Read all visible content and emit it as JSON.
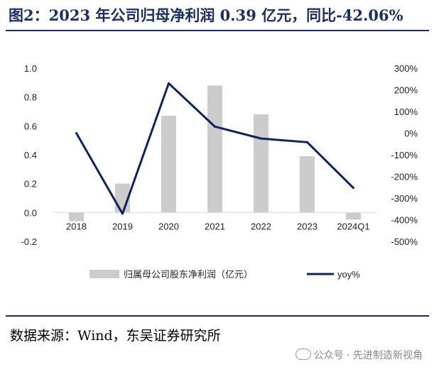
{
  "header": {
    "title": "图2：2023 年公司归母净利润 0.39 亿元，同比-42.06%"
  },
  "footer": {
    "source": "数据来源：Wind，东吴证券研究所",
    "watermark": "公众号 · 先进制造新视角"
  },
  "chart_data": {
    "type": "bar",
    "categories": [
      "2018",
      "2019",
      "2020",
      "2021",
      "2022",
      "2023",
      "2024Q1"
    ],
    "series": [
      {
        "name": "归属母公司股东净利润（亿元）",
        "type": "bar",
        "axis": "left",
        "values": [
          -0.06,
          0.2,
          0.67,
          0.88,
          0.68,
          0.39,
          -0.05
        ],
        "color": "#cccccc"
      },
      {
        "name": "yoy%",
        "type": "line",
        "axis": "right",
        "values": [
          0,
          -372,
          230,
          30,
          -25,
          -42,
          -253
        ],
        "color": "#0d2463"
      }
    ],
    "left_axis": {
      "ylim": [
        -0.2,
        1.0
      ],
      "ticks": [
        "-0.2",
        "0.0",
        "0.2",
        "0.4",
        "0.6",
        "0.8",
        "1.0"
      ],
      "tick_values": [
        -0.2,
        0,
        0.2,
        0.4,
        0.6,
        0.8,
        1.0
      ]
    },
    "right_axis": {
      "ylim": [
        -500,
        300
      ],
      "ticks": [
        "-500%",
        "-400%",
        "-300%",
        "-200%",
        "-100%",
        "0%",
        "100%",
        "200%",
        "300%"
      ],
      "tick_values": [
        -500,
        -400,
        -300,
        -200,
        -100,
        0,
        100,
        200,
        300
      ]
    },
    "legend_position": "bottom",
    "grid": false
  }
}
